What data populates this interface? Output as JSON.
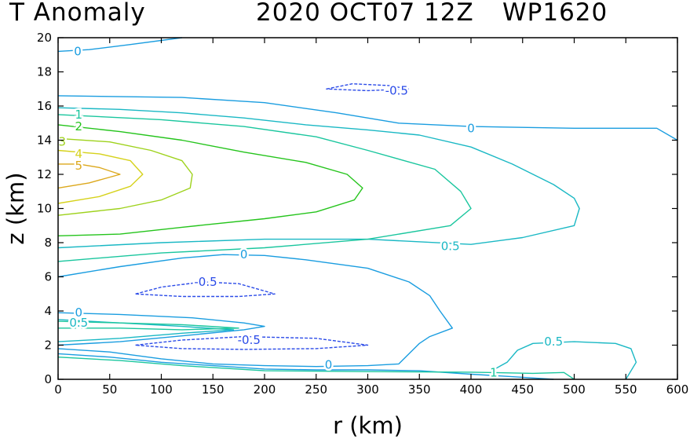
{
  "chart_data": {
    "type": "contour",
    "title": {
      "left": "T Anomaly",
      "center": "2020 OCT07 12Z",
      "right": "WP1620"
    },
    "xlabel": "r (km)",
    "ylabel": "z (km)",
    "xlim": [
      0,
      600
    ],
    "ylim": [
      0,
      20
    ],
    "xticks": [
      0,
      50,
      100,
      150,
      200,
      250,
      300,
      350,
      400,
      450,
      500,
      550,
      600
    ],
    "yticks": [
      0,
      2,
      4,
      6,
      8,
      10,
      12,
      14,
      16,
      18,
      20
    ],
    "colors": {
      "neg": "#2b4be8",
      "c0": "#1a9de0",
      "c05": "#1ab8c4",
      "c1": "#1ac69e",
      "c2": "#25c41c",
      "c3": "#9ed21c",
      "c4": "#d6d21c",
      "c5": "#dca81c"
    },
    "contours": [
      {
        "level": 0,
        "color": "c0",
        "points": [
          [
            0,
            19.2
          ],
          [
            30,
            19.3
          ],
          [
            70,
            19.6
          ],
          [
            120,
            20
          ]
        ]
      },
      {
        "level": 0,
        "color": "c0",
        "points": [
          [
            0,
            16.6
          ],
          [
            120,
            16.5
          ],
          [
            200,
            16.2
          ],
          [
            270,
            15.6
          ],
          [
            330,
            15.0
          ],
          [
            400,
            14.8
          ],
          [
            500,
            14.7
          ],
          [
            580,
            14.7
          ],
          [
            600,
            14
          ]
        ]
      },
      {
        "level": 0,
        "color": "c0",
        "points": [
          [
            0,
            6.0
          ],
          [
            60,
            6.6
          ],
          [
            120,
            7.1
          ],
          [
            160,
            7.3
          ],
          [
            200,
            7.25
          ],
          [
            240,
            7.0
          ],
          [
            300,
            6.5
          ],
          [
            340,
            5.7
          ],
          [
            360,
            4.9
          ],
          [
            370,
            4.0
          ],
          [
            382,
            3.0
          ],
          [
            360,
            2.5
          ],
          [
            350,
            2.1
          ],
          [
            340,
            1.5
          ],
          [
            330,
            0.9
          ],
          [
            300,
            0.8
          ],
          [
            250,
            0.75
          ],
          [
            200,
            0.8
          ],
          [
            150,
            0.9
          ],
          [
            100,
            1.2
          ],
          [
            50,
            1.6
          ],
          [
            0,
            1.8
          ]
        ]
      },
      {
        "level": 0,
        "color": "c0",
        "points": [
          [
            0,
            3.9
          ],
          [
            60,
            3.8
          ],
          [
            130,
            3.6
          ],
          [
            180,
            3.3
          ],
          [
            200,
            3.1
          ],
          [
            180,
            2.9
          ],
          [
            130,
            2.6
          ],
          [
            60,
            2.2
          ],
          [
            0,
            2.0
          ]
        ]
      },
      {
        "level": 0,
        "color": "c0",
        "points": [
          [
            480,
            0
          ],
          [
            450,
            0.12
          ],
          [
            400,
            0.3
          ],
          [
            350,
            0.5
          ],
          [
            300,
            0.55
          ],
          [
            250,
            0.55
          ],
          [
            200,
            0.6
          ],
          [
            150,
            0.8
          ],
          [
            100,
            1.0
          ],
          [
            50,
            1.3
          ],
          [
            0,
            1.5
          ]
        ]
      },
      {
        "level": 0.5,
        "color": "c05",
        "points": [
          [
            0,
            7.7
          ],
          [
            100,
            8.0
          ],
          [
            200,
            8.2
          ],
          [
            300,
            8.2
          ],
          [
            400,
            7.9
          ],
          [
            450,
            8.3
          ],
          [
            500,
            9.0
          ],
          [
            505,
            10.0
          ],
          [
            500,
            10.6
          ],
          [
            480,
            11.4
          ],
          [
            440,
            12.6
          ],
          [
            400,
            13.6
          ],
          [
            350,
            14.3
          ],
          [
            300,
            14.6
          ],
          [
            240,
            14.9
          ],
          [
            180,
            15.3
          ],
          [
            120,
            15.6
          ],
          [
            60,
            15.8
          ],
          [
            0,
            15.9
          ]
        ]
      },
      {
        "level": 0.5,
        "color": "c05",
        "points": [
          [
            0,
            3.5
          ],
          [
            60,
            3.3
          ],
          [
            120,
            3.1
          ],
          [
            170,
            2.9
          ],
          [
            120,
            2.7
          ],
          [
            60,
            2.4
          ],
          [
            0,
            2.2
          ]
        ]
      },
      {
        "level": 0.5,
        "color": "c05",
        "points": [
          [
            420,
            0.5
          ],
          [
            435,
            1.0
          ],
          [
            445,
            1.7
          ],
          [
            460,
            2.1
          ],
          [
            500,
            2.2
          ],
          [
            540,
            2.1
          ],
          [
            555,
            1.8
          ],
          [
            560,
            1.0
          ],
          [
            550,
            0
          ]
        ]
      },
      {
        "level": 1,
        "color": "c1",
        "points": [
          [
            0,
            6.9
          ],
          [
            100,
            7.4
          ],
          [
            200,
            7.7
          ],
          [
            300,
            8.2
          ],
          [
            380,
            9.0
          ],
          [
            400,
            10.0
          ],
          [
            390,
            11.0
          ],
          [
            365,
            12.3
          ],
          [
            300,
            13.4
          ],
          [
            250,
            14.2
          ],
          [
            180,
            14.8
          ],
          [
            100,
            15.2
          ],
          [
            0,
            15.5
          ]
        ]
      },
      {
        "level": 1,
        "color": "c1",
        "points": [
          [
            0,
            3.0
          ],
          [
            60,
            3.0
          ],
          [
            120,
            2.9
          ],
          [
            175,
            3.0
          ],
          [
            120,
            3.2
          ],
          [
            60,
            3.3
          ],
          [
            0,
            3.4
          ]
        ]
      },
      {
        "level": 1,
        "color": "c1",
        "points": [
          [
            0,
            1.3
          ],
          [
            60,
            1.1
          ],
          [
            120,
            0.8
          ],
          [
            200,
            0.5
          ],
          [
            300,
            0.45
          ],
          [
            400,
            0.42
          ],
          [
            460,
            0.35
          ],
          [
            490,
            0.4
          ],
          [
            500,
            0
          ]
        ]
      },
      {
        "level": 2,
        "color": "c2",
        "points": [
          [
            0,
            8.4
          ],
          [
            60,
            8.5
          ],
          [
            120,
            8.9
          ],
          [
            200,
            9.4
          ],
          [
            250,
            9.8
          ],
          [
            287,
            10.5
          ],
          [
            295,
            11.2
          ],
          [
            280,
            12.0
          ],
          [
            240,
            12.7
          ],
          [
            180,
            13.3
          ],
          [
            120,
            14.0
          ],
          [
            60,
            14.5
          ],
          [
            0,
            14.9
          ]
        ]
      },
      {
        "level": 3,
        "color": "c3",
        "points": [
          [
            0,
            9.6
          ],
          [
            60,
            10.0
          ],
          [
            100,
            10.5
          ],
          [
            128,
            11.2
          ],
          [
            130,
            12.0
          ],
          [
            120,
            12.8
          ],
          [
            90,
            13.4
          ],
          [
            50,
            13.9
          ],
          [
            0,
            14.1
          ]
        ]
      },
      {
        "level": 4,
        "color": "c4",
        "points": [
          [
            0,
            10.3
          ],
          [
            40,
            10.7
          ],
          [
            70,
            11.3
          ],
          [
            82,
            12.0
          ],
          [
            70,
            12.8
          ],
          [
            40,
            13.2
          ],
          [
            0,
            13.4
          ]
        ]
      },
      {
        "level": 5,
        "color": "c5",
        "points": [
          [
            0,
            11.2
          ],
          [
            30,
            11.5
          ],
          [
            60,
            12.0
          ],
          [
            40,
            12.4
          ],
          [
            20,
            12.6
          ],
          [
            0,
            12.6
          ]
        ]
      },
      {
        "level": -0.5,
        "color": "neg",
        "points": [
          [
            260,
            17.0
          ],
          [
            285,
            17.3
          ],
          [
            320,
            17.2
          ],
          [
            340,
            17.0
          ],
          [
            300,
            16.9
          ],
          [
            260,
            17.0
          ]
        ],
        "closed": true,
        "dashed": true
      },
      {
        "level": -0.5,
        "color": "neg",
        "points": [
          [
            75,
            5.0
          ],
          [
            100,
            5.4
          ],
          [
            140,
            5.7
          ],
          [
            175,
            5.6
          ],
          [
            210,
            5.0
          ],
          [
            175,
            4.85
          ],
          [
            120,
            4.85
          ],
          [
            75,
            5.0
          ]
        ],
        "closed": true,
        "dashed": true
      },
      {
        "level": -0.5,
        "color": "neg",
        "points": [
          [
            75,
            2.0
          ],
          [
            120,
            2.3
          ],
          [
            180,
            2.5
          ],
          [
            250,
            2.4
          ],
          [
            300,
            2.0
          ],
          [
            250,
            1.8
          ],
          [
            180,
            1.75
          ],
          [
            120,
            1.8
          ],
          [
            75,
            2.0
          ]
        ],
        "closed": true,
        "dashed": true
      }
    ],
    "labels": [
      {
        "text": "0",
        "x": 19,
        "y": 19.2,
        "color": "c0"
      },
      {
        "text": "-0.5",
        "x": 328,
        "y": 16.9,
        "color": "neg"
      },
      {
        "text": "1",
        "x": 20,
        "y": 15.5,
        "color": "c1"
      },
      {
        "text": "0",
        "x": 400,
        "y": 14.7,
        "color": "c0"
      },
      {
        "text": "2",
        "x": 20,
        "y": 14.8,
        "color": "c2"
      },
      {
        "text": "3",
        "x": 4,
        "y": 13.9,
        "color": "c3"
      },
      {
        "text": "4",
        "x": 20,
        "y": 13.2,
        "color": "c4"
      },
      {
        "text": "5",
        "x": 20,
        "y": 12.5,
        "color": "c5"
      },
      {
        "text": "0.5",
        "x": 380,
        "y": 7.8,
        "color": "c05"
      },
      {
        "text": "0",
        "x": 180,
        "y": 7.3,
        "color": "c0"
      },
      {
        "text": "-0.5",
        "x": 143,
        "y": 5.7,
        "color": "neg"
      },
      {
        "text": "0",
        "x": 20,
        "y": 3.9,
        "color": "c0"
      },
      {
        "text": "0.5",
        "x": 20,
        "y": 3.3,
        "color": "c05"
      },
      {
        "text": "-0.5",
        "x": 185,
        "y": 2.3,
        "color": "neg"
      },
      {
        "text": "0.5",
        "x": 480,
        "y": 2.2,
        "color": "c05"
      },
      {
        "text": "0",
        "x": 262,
        "y": 0.85,
        "color": "c0"
      },
      {
        "text": "1",
        "x": 422,
        "y": 0.4,
        "color": "c1"
      }
    ]
  }
}
